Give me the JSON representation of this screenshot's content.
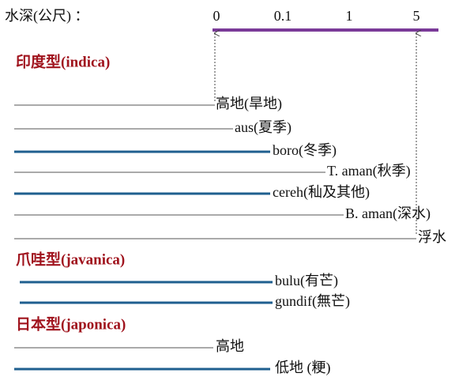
{
  "header": {
    "label": "水深(公尺) ：",
    "scale": [
      "0",
      "0.1",
      "1",
      "5"
    ]
  },
  "groups": [
    {
      "title": "印度型(indica)",
      "rows": [
        {
          "label": "高地(旱地)"
        },
        {
          "label": "aus(夏季)"
        },
        {
          "label": "boro(冬季)"
        },
        {
          "label": "T. aman(秋季)"
        },
        {
          "label": "cereh(秈及其他)"
        },
        {
          "label": "B. aman(深水)"
        },
        {
          "label": "浮水"
        }
      ]
    },
    {
      "title": "爪哇型(javanica)",
      "rows": [
        {
          "label": "bulu(有芒)"
        },
        {
          "label": "gundif(無芒)"
        }
      ]
    },
    {
      "title": "日本型(japonica)",
      "rows": [
        {
          "label": "高地"
        },
        {
          "label": "低地 (粳)"
        }
      ]
    }
  ]
}
